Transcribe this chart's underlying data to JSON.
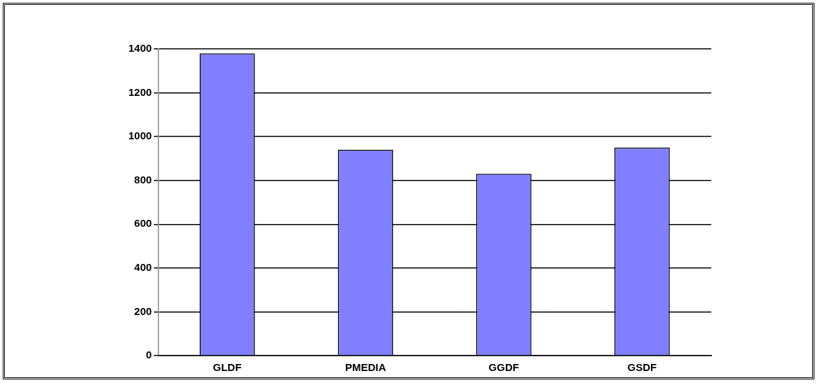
{
  "chart_data": {
    "type": "bar",
    "categories": [
      "GLDF",
      "PMEDIA",
      "GGDF",
      "GSDF"
    ],
    "values": [
      1380,
      940,
      830,
      950
    ],
    "color": "#8080ff",
    "ylim": [
      0,
      1400
    ],
    "yticks": [
      0,
      200,
      400,
      600,
      800,
      1000,
      1200,
      1400
    ],
    "grid": "y",
    "legend": false
  }
}
